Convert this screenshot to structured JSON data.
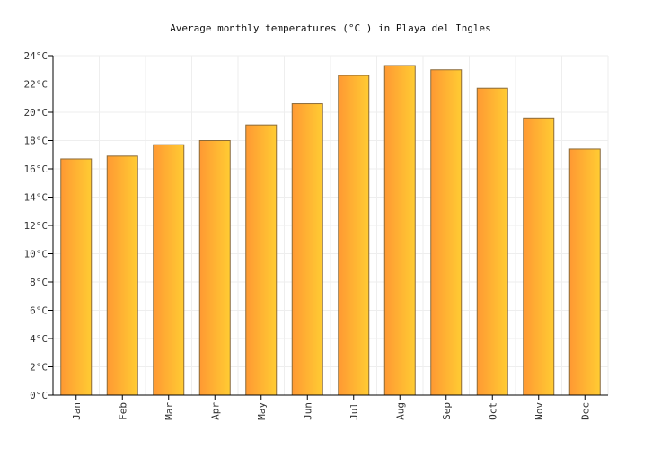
{
  "chart_data": {
    "type": "bar",
    "title": "Average monthly temperatures (°C ) in Playa del Ingles",
    "xlabel": "",
    "ylabel": "",
    "categories": [
      "Jan",
      "Feb",
      "Mar",
      "Apr",
      "May",
      "Jun",
      "Jul",
      "Aug",
      "Sep",
      "Oct",
      "Nov",
      "Dec"
    ],
    "series": [
      {
        "values": [
          16.7,
          16.9,
          17.7,
          18.0,
          19.1,
          20.6,
          22.6,
          23.3,
          23.0,
          21.7,
          19.6,
          17.4
        ]
      }
    ],
    "ylim": [
      0,
      24
    ],
    "ytick_step": 2,
    "ytick_suffix": "°C",
    "grid": true,
    "legend": "none",
    "bar_gradient": [
      "#ff9933",
      "#ffcc33"
    ],
    "bar_stroke": "#8a6a3a",
    "grid_color": "#eeeeee",
    "axis_color": "#000000"
  }
}
